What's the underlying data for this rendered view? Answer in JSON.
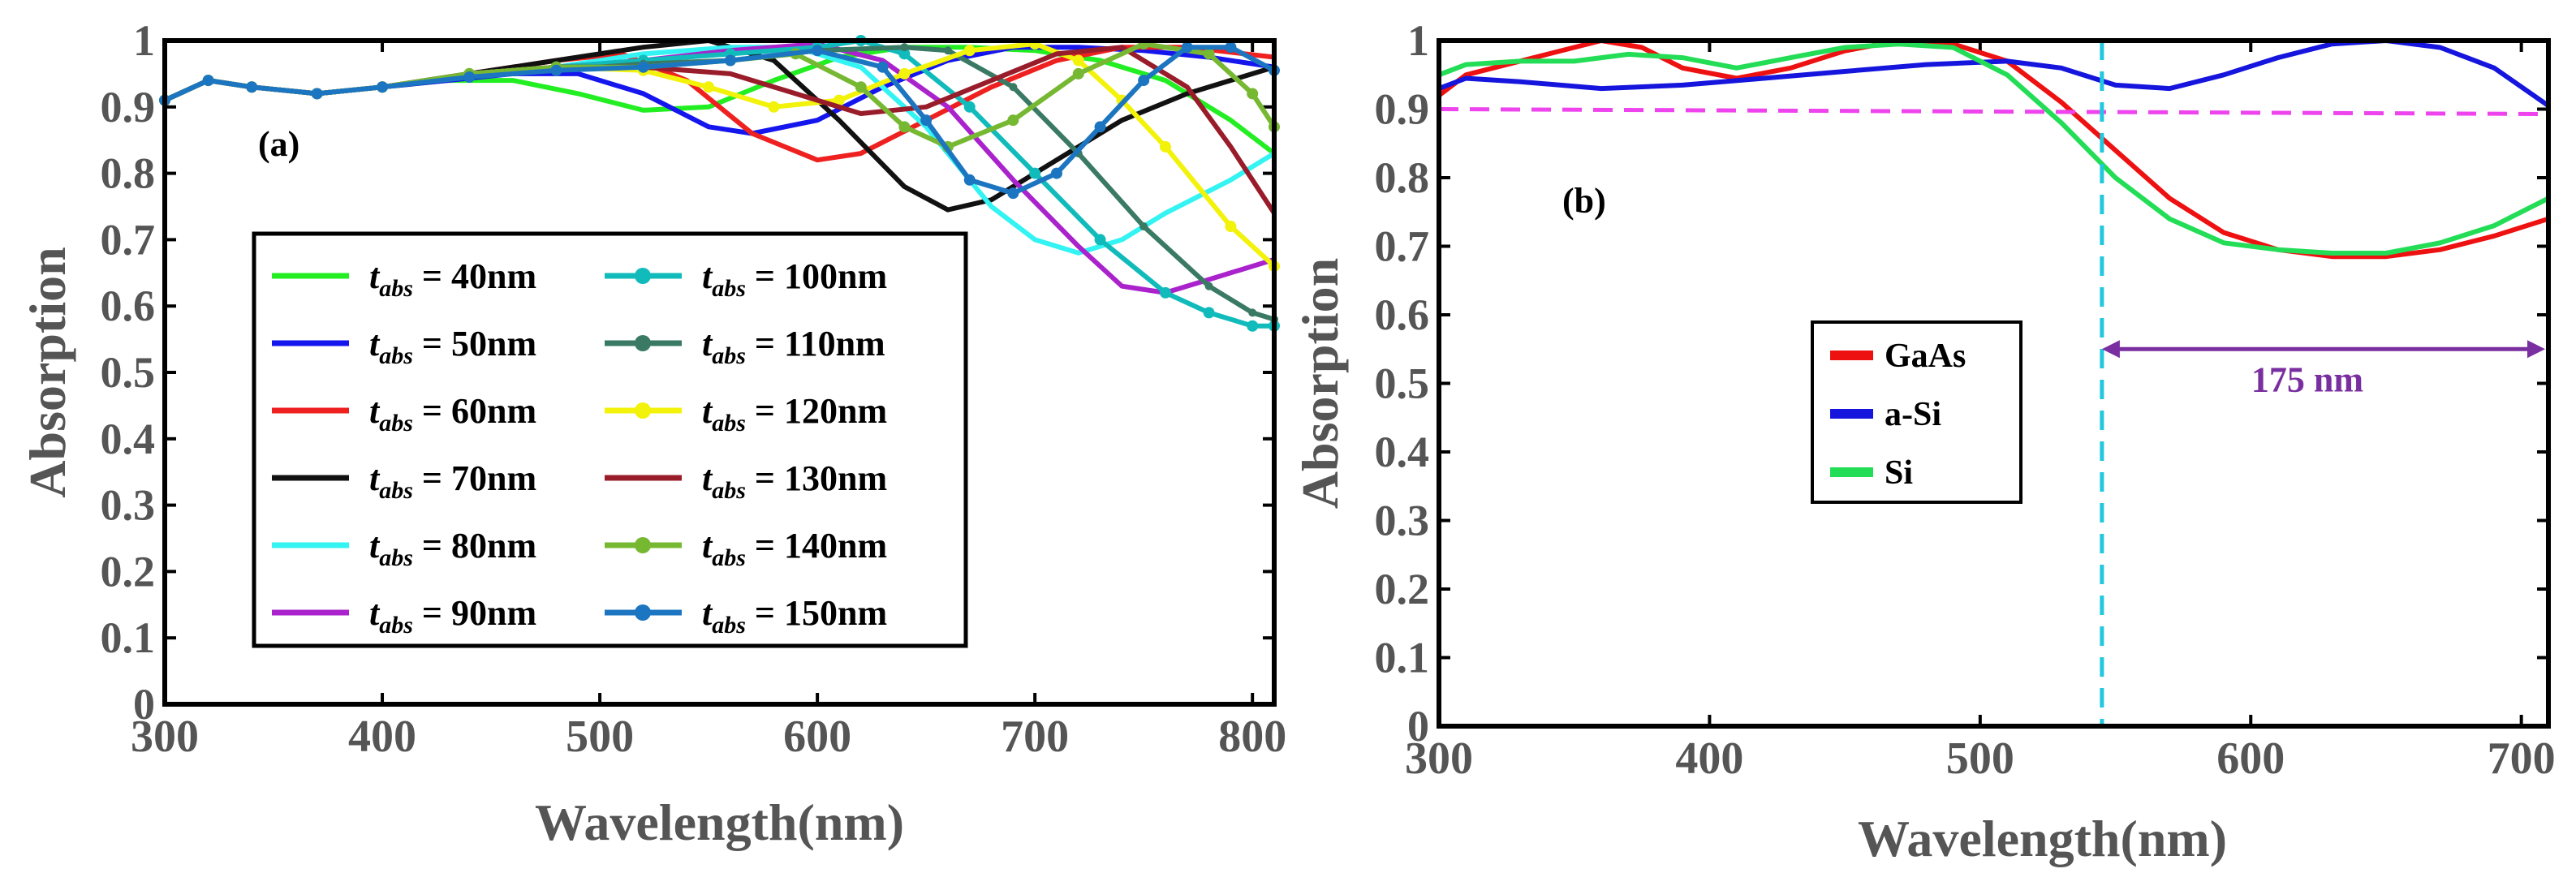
{
  "chart_data": [
    {
      "type": "line",
      "panel_label": "(a)",
      "xlabel": "Wavelength(nm)",
      "ylabel": "Absorption",
      "xlim": [
        300,
        810
      ],
      "ylim": [
        0,
        1
      ],
      "xticks": [
        300,
        400,
        500,
        600,
        700,
        800
      ],
      "yticks": [
        0,
        0.1,
        0.2,
        0.3,
        0.4,
        0.5,
        0.6,
        0.7,
        0.8,
        0.9,
        1
      ],
      "ytick_labels": [
        "0",
        "0.1",
        "0.2",
        "0.3",
        "0.4",
        "0.5",
        "0.6",
        "0.7",
        "0.8",
        "0.9",
        "1"
      ],
      "legend_position": "lower-left",
      "legend_symbol": "t",
      "legend_subscript": "abs",
      "series": [
        {
          "name": "40nm",
          "color": "#22ee22",
          "marker": "none",
          "x": [
            300,
            320,
            340,
            370,
            400,
            430,
            460,
            490,
            520,
            550,
            580,
            610,
            640,
            670,
            700,
            730,
            760,
            790,
            810
          ],
          "y": [
            0.91,
            0.94,
            0.93,
            0.92,
            0.93,
            0.94,
            0.94,
            0.92,
            0.895,
            0.9,
            0.94,
            0.975,
            0.99,
            0.99,
            0.985,
            0.97,
            0.94,
            0.88,
            0.83
          ]
        },
        {
          "name": "50nm",
          "color": "#1515ee",
          "marker": "none",
          "x": [
            300,
            320,
            340,
            370,
            400,
            430,
            460,
            490,
            520,
            550,
            570,
            600,
            630,
            660,
            690,
            720,
            750,
            780,
            810
          ],
          "y": [
            0.91,
            0.94,
            0.93,
            0.92,
            0.93,
            0.94,
            0.95,
            0.95,
            0.92,
            0.87,
            0.86,
            0.88,
            0.93,
            0.97,
            0.99,
            0.99,
            0.985,
            0.975,
            0.96
          ]
        },
        {
          "name": "60nm",
          "color": "#ee2020",
          "marker": "none",
          "x": [
            300,
            320,
            340,
            370,
            400,
            440,
            480,
            510,
            540,
            570,
            600,
            620,
            650,
            680,
            710,
            740,
            770,
            810
          ],
          "y": [
            0.91,
            0.94,
            0.93,
            0.92,
            0.93,
            0.95,
            0.97,
            0.98,
            0.94,
            0.86,
            0.82,
            0.83,
            0.88,
            0.93,
            0.97,
            0.99,
            0.99,
            0.975
          ]
        },
        {
          "name": "70nm",
          "color": "#111111",
          "marker": "none",
          "x": [
            300,
            320,
            340,
            370,
            400,
            440,
            480,
            520,
            550,
            580,
            610,
            640,
            660,
            680,
            710,
            740,
            770,
            800,
            810
          ],
          "y": [
            0.91,
            0.94,
            0.93,
            0.92,
            0.93,
            0.95,
            0.97,
            0.99,
            1.0,
            0.97,
            0.88,
            0.78,
            0.745,
            0.76,
            0.82,
            0.88,
            0.92,
            0.95,
            0.96
          ]
        },
        {
          "name": "80nm",
          "color": "#33f3f3",
          "marker": "none",
          "x": [
            300,
            320,
            340,
            370,
            400,
            440,
            480,
            520,
            560,
            590,
            620,
            650,
            680,
            700,
            720,
            740,
            760,
            790,
            810
          ],
          "y": [
            0.91,
            0.94,
            0.93,
            0.92,
            0.93,
            0.95,
            0.96,
            0.98,
            0.99,
            0.99,
            0.96,
            0.87,
            0.75,
            0.7,
            0.68,
            0.7,
            0.74,
            0.79,
            0.83
          ]
        },
        {
          "name": "90nm",
          "color": "#aa22cc",
          "marker": "none",
          "x": [
            300,
            320,
            340,
            370,
            400,
            440,
            480,
            520,
            560,
            600,
            630,
            660,
            690,
            720,
            740,
            760,
            780,
            800,
            810
          ],
          "y": [
            0.91,
            0.94,
            0.93,
            0.92,
            0.93,
            0.95,
            0.96,
            0.97,
            0.985,
            0.995,
            0.97,
            0.9,
            0.79,
            0.69,
            0.63,
            0.62,
            0.64,
            0.66,
            0.67
          ]
        },
        {
          "name": "100nm",
          "color": "#11bbbb",
          "marker": "circle",
          "x": [
            300,
            320,
            340,
            370,
            400,
            440,
            480,
            520,
            560,
            600,
            620,
            640,
            670,
            700,
            730,
            760,
            780,
            800,
            810
          ],
          "y": [
            0.91,
            0.94,
            0.93,
            0.92,
            0.93,
            0.95,
            0.96,
            0.97,
            0.98,
            0.99,
            1.0,
            0.98,
            0.9,
            0.8,
            0.7,
            0.62,
            0.59,
            0.57,
            0.57
          ]
        },
        {
          "name": "110nm",
          "color": "#3a7a64",
          "marker": "star",
          "x": [
            300,
            320,
            340,
            370,
            400,
            440,
            480,
            520,
            560,
            600,
            640,
            660,
            690,
            720,
            750,
            780,
            800,
            810
          ],
          "y": [
            0.91,
            0.94,
            0.93,
            0.92,
            0.93,
            0.95,
            0.955,
            0.965,
            0.97,
            0.985,
            0.99,
            0.985,
            0.93,
            0.83,
            0.72,
            0.63,
            0.59,
            0.58
          ]
        },
        {
          "name": "120nm",
          "color": "#f2f20a",
          "marker": "circle",
          "x": [
            300,
            320,
            340,
            370,
            400,
            440,
            480,
            520,
            550,
            580,
            610,
            640,
            670,
            700,
            720,
            740,
            760,
            790,
            810
          ],
          "y": [
            0.91,
            0.94,
            0.93,
            0.92,
            0.93,
            0.95,
            0.96,
            0.955,
            0.93,
            0.9,
            0.91,
            0.95,
            0.985,
            0.995,
            0.97,
            0.91,
            0.84,
            0.72,
            0.66
          ]
        },
        {
          "name": "130nm",
          "color": "#991c2a",
          "marker": "none",
          "x": [
            300,
            320,
            340,
            370,
            400,
            440,
            480,
            520,
            560,
            590,
            620,
            650,
            680,
            710,
            740,
            770,
            790,
            810
          ],
          "y": [
            0.91,
            0.94,
            0.93,
            0.92,
            0.93,
            0.95,
            0.96,
            0.96,
            0.95,
            0.92,
            0.89,
            0.9,
            0.94,
            0.98,
            0.99,
            0.93,
            0.84,
            0.74
          ]
        },
        {
          "name": "140nm",
          "color": "#77b833",
          "marker": "circle",
          "x": [
            300,
            320,
            340,
            370,
            400,
            440,
            480,
            520,
            560,
            590,
            620,
            640,
            660,
            690,
            720,
            750,
            780,
            800,
            810
          ],
          "y": [
            0.91,
            0.94,
            0.93,
            0.92,
            0.93,
            0.95,
            0.96,
            0.96,
            0.97,
            0.98,
            0.93,
            0.87,
            0.84,
            0.88,
            0.95,
            0.995,
            0.98,
            0.92,
            0.87
          ]
        },
        {
          "name": "150nm",
          "color": "#1c75c0",
          "marker": "circle",
          "x": [
            300,
            320,
            340,
            370,
            400,
            440,
            480,
            520,
            560,
            600,
            630,
            650,
            670,
            690,
            710,
            730,
            750,
            770,
            790,
            810
          ],
          "y": [
            0.91,
            0.94,
            0.93,
            0.92,
            0.93,
            0.945,
            0.955,
            0.96,
            0.97,
            0.985,
            0.96,
            0.88,
            0.79,
            0.77,
            0.8,
            0.87,
            0.94,
            0.99,
            0.99,
            0.955
          ]
        }
      ]
    },
    {
      "type": "line",
      "panel_label": "(b)",
      "xlabel": "Wavelength(nm)",
      "ylabel": "Absorption",
      "xlim": [
        300,
        710
      ],
      "ylim": [
        0,
        1
      ],
      "xticks": [
        300,
        400,
        500,
        600,
        700
      ],
      "yticks": [
        0,
        0.1,
        0.2,
        0.3,
        0.4,
        0.5,
        0.6,
        0.7,
        0.8,
        0.9,
        1
      ],
      "ytick_labels": [
        "0",
        "0.1",
        "0.2",
        "0.3",
        "0.4",
        "0.5",
        "0.6",
        "0.7",
        "0.8",
        "0.9",
        "1"
      ],
      "legend_position": "center",
      "series": [
        {
          "name": "GaAs",
          "color": "#ee1111",
          "x": [
            300,
            310,
            320,
            340,
            360,
            375,
            390,
            410,
            430,
            450,
            470,
            490,
            510,
            530,
            550,
            570,
            590,
            610,
            630,
            650,
            670,
            690,
            710
          ],
          "y": [
            0.92,
            0.95,
            0.96,
            0.98,
            1.0,
            0.99,
            0.96,
            0.945,
            0.96,
            0.985,
            1.0,
            0.995,
            0.97,
            0.91,
            0.84,
            0.77,
            0.72,
            0.695,
            0.685,
            0.685,
            0.695,
            0.715,
            0.74
          ]
        },
        {
          "name": "a-Si",
          "color": "#1515dd",
          "x": [
            300,
            310,
            330,
            360,
            390,
            420,
            450,
            480,
            510,
            530,
            550,
            570,
            590,
            610,
            630,
            650,
            670,
            690,
            710
          ],
          "y": [
            0.93,
            0.945,
            0.94,
            0.93,
            0.935,
            0.945,
            0.955,
            0.965,
            0.97,
            0.96,
            0.935,
            0.93,
            0.95,
            0.975,
            0.995,
            1.0,
            0.99,
            0.96,
            0.905
          ]
        },
        {
          "name": "Si",
          "color": "#22dd55",
          "x": [
            300,
            310,
            330,
            350,
            370,
            390,
            410,
            430,
            450,
            470,
            490,
            510,
            530,
            550,
            570,
            590,
            610,
            630,
            650,
            670,
            690,
            710
          ],
          "y": [
            0.95,
            0.965,
            0.97,
            0.97,
            0.98,
            0.975,
            0.96,
            0.975,
            0.99,
            0.995,
            0.99,
            0.95,
            0.88,
            0.8,
            0.74,
            0.705,
            0.695,
            0.69,
            0.69,
            0.705,
            0.73,
            0.77
          ]
        }
      ],
      "reference_line": {
        "y": 0.9,
        "color": "#ee44ee",
        "style": "dashed"
      },
      "vertical_line": {
        "x": 545,
        "color": "#22c8dd",
        "style": "dashed"
      },
      "annotation": {
        "text": "175 nm",
        "x_start": 545,
        "x_end": 720,
        "y": 0.55,
        "color": "#7a2fa0"
      }
    }
  ]
}
